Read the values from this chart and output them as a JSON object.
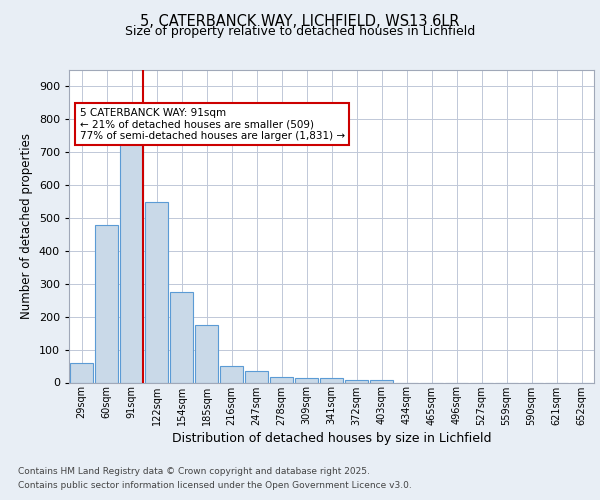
{
  "title1": "5, CATERBANCK WAY, LICHFIELD, WS13 6LR",
  "title2": "Size of property relative to detached houses in Lichfield",
  "xlabel": "Distribution of detached houses by size in Lichfield",
  "ylabel": "Number of detached properties",
  "categories": [
    "29sqm",
    "60sqm",
    "91sqm",
    "122sqm",
    "154sqm",
    "185sqm",
    "216sqm",
    "247sqm",
    "278sqm",
    "309sqm",
    "341sqm",
    "372sqm",
    "403sqm",
    "434sqm",
    "465sqm",
    "496sqm",
    "527sqm",
    "559sqm",
    "590sqm",
    "621sqm",
    "652sqm"
  ],
  "values": [
    60,
    480,
    730,
    550,
    275,
    175,
    50,
    35,
    18,
    15,
    15,
    8,
    8,
    0,
    0,
    0,
    0,
    0,
    0,
    0,
    0
  ],
  "bar_color": "#c9d9e8",
  "bar_edge_color": "#5b9bd5",
  "red_line_index": 2,
  "annotation_text": "5 CATERBANCK WAY: 91sqm\n← 21% of detached houses are smaller (509)\n77% of semi-detached houses are larger (1,831) →",
  "annotation_box_color": "#ffffff",
  "annotation_box_edge": "#cc0000",
  "ylim": [
    0,
    950
  ],
  "yticks": [
    0,
    100,
    200,
    300,
    400,
    500,
    600,
    700,
    800,
    900
  ],
  "background_color": "#e8eef5",
  "plot_background": "#ffffff",
  "footer1": "Contains HM Land Registry data © Crown copyright and database right 2025.",
  "footer2": "Contains public sector information licensed under the Open Government Licence v3.0."
}
